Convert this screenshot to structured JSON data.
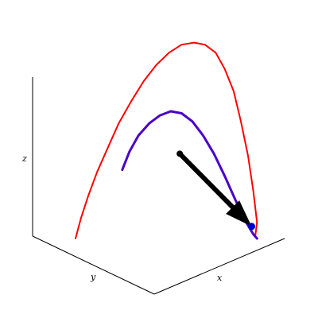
{
  "chart_data": {
    "type": "line",
    "projection": "3d-isometric",
    "axis_labels": {
      "x": "x",
      "y": "y",
      "z": "z"
    },
    "axis_ranges": {
      "x": [
        0,
        1
      ],
      "y": [
        0,
        1
      ],
      "z": [
        0,
        1
      ]
    },
    "grid": false,
    "legend": "none",
    "series": [
      {
        "role": "outer-curve",
        "color": "#ff0000",
        "values": [
          {
            "x": 0.04,
            "y": 0.0,
            "z": 0.0
          },
          {
            "x": 0.07,
            "y": 0.0,
            "z": 0.1
          },
          {
            "x": 0.11,
            "y": 0.0,
            "z": 0.21
          },
          {
            "x": 0.16,
            "y": 0.0,
            "z": 0.33
          },
          {
            "x": 0.22,
            "y": 0.0,
            "z": 0.45
          },
          {
            "x": 0.28,
            "y": 0.0,
            "z": 0.57
          },
          {
            "x": 0.35,
            "y": 0.0,
            "z": 0.68
          },
          {
            "x": 0.42,
            "y": 0.0,
            "z": 0.78
          },
          {
            "x": 0.49,
            "y": 0.0,
            "z": 0.86
          },
          {
            "x": 0.56,
            "y": 0.0,
            "z": 0.92
          },
          {
            "x": 0.63,
            "y": 0.0,
            "z": 0.96
          },
          {
            "x": 0.7,
            "y": 0.0,
            "z": 0.97
          },
          {
            "x": 0.76,
            "y": 0.0,
            "z": 0.96
          },
          {
            "x": 0.82,
            "y": 0.0,
            "z": 0.92
          },
          {
            "x": 0.87,
            "y": 0.0,
            "z": 0.84
          },
          {
            "x": 0.92,
            "y": 0.0,
            "z": 0.73
          },
          {
            "x": 0.96,
            "y": 0.0,
            "z": 0.58
          },
          {
            "x": 1.0,
            "y": 0.0,
            "z": 0.41
          },
          {
            "x": 1.03,
            "y": 0.0,
            "z": 0.23
          },
          {
            "x": 1.05,
            "y": 0.0,
            "z": 0.08
          },
          {
            "x": 1.04,
            "y": 0.0,
            "z": 0.01
          }
        ]
      },
      {
        "role": "inner-curve",
        "color": "#4b00c8",
        "values": [
          {
            "x": 0.3,
            "y": 0.0,
            "z": 0.34
          },
          {
            "x": 0.34,
            "y": 0.0,
            "z": 0.43
          },
          {
            "x": 0.39,
            "y": 0.0,
            "z": 0.51
          },
          {
            "x": 0.45,
            "y": 0.0,
            "z": 0.57
          },
          {
            "x": 0.51,
            "y": 0.0,
            "z": 0.61
          },
          {
            "x": 0.57,
            "y": 0.0,
            "z": 0.63
          },
          {
            "x": 0.63,
            "y": 0.0,
            "z": 0.62
          },
          {
            "x": 0.69,
            "y": 0.0,
            "z": 0.58
          },
          {
            "x": 0.75,
            "y": 0.0,
            "z": 0.51
          },
          {
            "x": 0.81,
            "y": 0.0,
            "z": 0.42
          },
          {
            "x": 0.87,
            "y": 0.0,
            "z": 0.31
          },
          {
            "x": 0.93,
            "y": 0.0,
            "z": 0.19
          },
          {
            "x": 0.99,
            "y": 0.0,
            "z": 0.08
          },
          {
            "x": 1.03,
            "y": 0.0,
            "z": 0.02
          },
          {
            "x": 1.05,
            "y": 0.0,
            "z": 0.0
          }
        ]
      }
    ],
    "vector": {
      "color": "#000000",
      "from": {
        "x": 0.62,
        "y": 0.0,
        "z": 0.42
      },
      "to": {
        "x": 1.02,
        "y": 0.0,
        "z": 0.06
      }
    },
    "marker": {
      "color": "#0000c8",
      "at": {
        "x": 1.02,
        "y": 0.0,
        "z": 0.06
      }
    }
  }
}
